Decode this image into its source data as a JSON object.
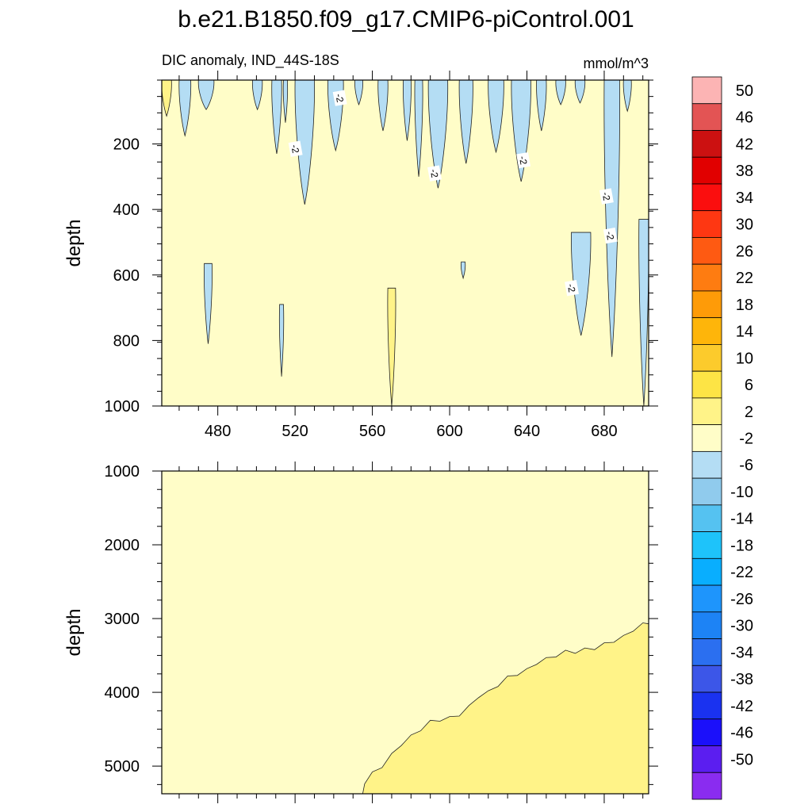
{
  "chart_data": {
    "type": "contour",
    "title": "b.e21.B1850.f09_g17.CMIP6-piControl.001",
    "variable_label": "DIC anomaly, IND_44S-18S",
    "units_label": "mmol/m^3",
    "x_ticks": [
      "480",
      "520",
      "560",
      "600",
      "640",
      "680"
    ],
    "x_tick_values": [
      480,
      520,
      560,
      600,
      640,
      680
    ],
    "xlim": [
      451,
      703
    ],
    "panels": [
      {
        "name": "upper",
        "ylabel": "depth",
        "ylim": [
          5,
          1000
        ],
        "y_ticks": [
          "200",
          "400",
          "600",
          "800",
          "1000"
        ],
        "y_tick_values": [
          200,
          400,
          600,
          800,
          1000
        ],
        "background_level": "-2 to 2",
        "contour_labels": [
          "-2",
          "-2",
          "-2",
          "-2",
          "-2",
          "-2",
          "-2"
        ],
        "contour_label_points": [
          {
            "x": 543,
            "y": 60
          },
          {
            "x": 520,
            "y": 215
          },
          {
            "x": 592,
            "y": 290
          },
          {
            "x": 638,
            "y": 250
          },
          {
            "x": 681,
            "y": 360
          },
          {
            "x": 683,
            "y": 480
          },
          {
            "x": 663,
            "y": 640
          }
        ],
        "negative_streaks": [
          {
            "x0": 460,
            "x1": 466,
            "d0": 5,
            "d1": 175
          },
          {
            "x0": 470,
            "x1": 478,
            "d0": 5,
            "d1": 95
          },
          {
            "x0": 498,
            "x1": 503,
            "d0": 5,
            "d1": 95
          },
          {
            "x0": 508,
            "x1": 513,
            "d0": 5,
            "d1": 230
          },
          {
            "x0": 514,
            "x1": 516,
            "d0": 5,
            "d1": 135
          },
          {
            "x0": 520,
            "x1": 530,
            "d0": 5,
            "d1": 385
          },
          {
            "x0": 537,
            "x1": 545,
            "d0": 5,
            "d1": 220
          },
          {
            "x0": 551,
            "x1": 555,
            "d0": 5,
            "d1": 80
          },
          {
            "x0": 563,
            "x1": 568,
            "d0": 5,
            "d1": 160
          },
          {
            "x0": 576,
            "x1": 580,
            "d0": 5,
            "d1": 190
          },
          {
            "x0": 582,
            "x1": 586,
            "d0": 5,
            "d1": 300
          },
          {
            "x0": 589,
            "x1": 599,
            "d0": 5,
            "d1": 335
          },
          {
            "x0": 605,
            "x1": 612,
            "d0": 5,
            "d1": 260
          },
          {
            "x0": 620,
            "x1": 628,
            "d0": 5,
            "d1": 225
          },
          {
            "x0": 632,
            "x1": 642,
            "d0": 5,
            "d1": 315
          },
          {
            "x0": 645,
            "x1": 650,
            "d0": 5,
            "d1": 160
          },
          {
            "x0": 655,
            "x1": 660,
            "d0": 5,
            "d1": 80
          },
          {
            "x0": 665,
            "x1": 670,
            "d0": 5,
            "d1": 75
          },
          {
            "x0": 680,
            "x1": 688,
            "d0": 5,
            "d1": 850
          },
          {
            "x0": 690,
            "x1": 694,
            "d0": 5,
            "d1": 100
          },
          {
            "x0": 698,
            "x1": 703,
            "d0": 430,
            "d1": 1000
          },
          {
            "x0": 663,
            "x1": 673,
            "d0": 470,
            "d1": 785
          },
          {
            "x0": 473,
            "x1": 477,
            "d0": 565,
            "d1": 810
          },
          {
            "x0": 512,
            "x1": 514,
            "d0": 690,
            "d1": 910
          },
          {
            "x0": 606,
            "x1": 608,
            "d0": 560,
            "d1": 610
          }
        ],
        "positive_streaks": [
          {
            "x0": 451,
            "x1": 456,
            "d0": 5,
            "d1": 115
          },
          {
            "x0": 568,
            "x1": 572,
            "d0": 640,
            "d1": 1000
          }
        ]
      },
      {
        "name": "lower",
        "ylabel": "depth",
        "ylim": [
          1000,
          5375
        ],
        "y_ticks": [
          "1000",
          "2000",
          "3000",
          "4000",
          "5000"
        ],
        "y_tick_values": [
          1000,
          2000,
          3000,
          4000,
          5000
        ],
        "background_level": "-2 to 2",
        "positive_region_boundary": [
          [
            555,
            5375
          ],
          [
            556,
            5220
          ],
          [
            560,
            5100
          ],
          [
            565,
            5000
          ],
          [
            570,
            4850
          ],
          [
            575,
            4700
          ],
          [
            580,
            4600
          ],
          [
            585,
            4500
          ],
          [
            590,
            4400
          ],
          [
            595,
            4370
          ],
          [
            600,
            4350
          ],
          [
            605,
            4300
          ],
          [
            610,
            4200
          ],
          [
            615,
            4050
          ],
          [
            620,
            4000
          ],
          [
            625,
            3900
          ],
          [
            630,
            3800
          ],
          [
            635,
            3750
          ],
          [
            640,
            3700
          ],
          [
            645,
            3600
          ],
          [
            650,
            3550
          ],
          [
            655,
            3500
          ],
          [
            660,
            3450
          ],
          [
            665,
            3450
          ],
          [
            670,
            3420
          ],
          [
            675,
            3400
          ],
          [
            680,
            3350
          ],
          [
            685,
            3300
          ],
          [
            690,
            3250
          ],
          [
            695,
            3150
          ],
          [
            700,
            3080
          ],
          [
            703,
            3050
          ]
        ]
      }
    ],
    "colorbar": {
      "labels": [
        "50",
        "46",
        "42",
        "38",
        "34",
        "30",
        "26",
        "22",
        "18",
        "14",
        "10",
        "6",
        "2",
        "-2",
        "-6",
        "-10",
        "-14",
        "-18",
        "-22",
        "-26",
        "-30",
        "-34",
        "-38",
        "-42",
        "-46",
        "-50"
      ],
      "colors": [
        "#fcb4b4",
        "#e35454",
        "#cc1111",
        "#e10000",
        "#fb0e0e",
        "#fe3712",
        "#fe5a12",
        "#fe7c11",
        "#fe9b08",
        "#feb50a",
        "#fccb2c",
        "#fde445",
        "#fff388",
        "#fffdc8",
        "#b4ddf4",
        "#90cbed",
        "#55c2f1",
        "#1ec3fa",
        "#09aefe",
        "#1e95fc",
        "#1d83f5",
        "#2b6ff0",
        "#3c56e8",
        "#1a32f0",
        "#1b10fa",
        "#5b1ef0",
        "#8a2cf0"
      ]
    },
    "palette": {
      "neutral_fill": "#fffdc8",
      "negative_fill": "#b4ddf4",
      "positive_fill": "#fff388"
    }
  }
}
